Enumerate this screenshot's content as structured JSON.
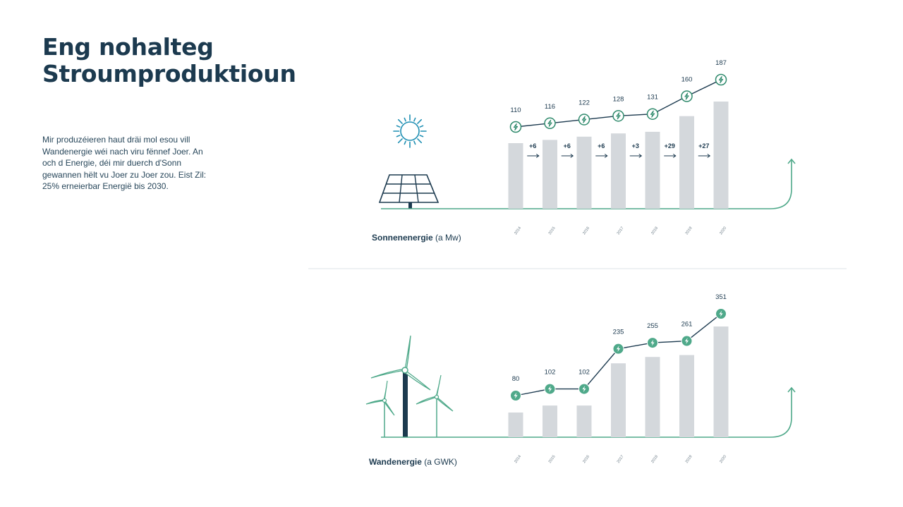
{
  "page": {
    "title_line1": "Eng nohalteg",
    "title_line2": "Stroumproduktioun",
    "intro": "Mir produzéieren haut dräi mol esou vill Wandenergie wéi nach viru fënnef Joer. An och d Energie, déi mir duerch d'Sonn gewannen hëlt vu Joer zu Joer zou. Eist Zil: 25% erneierbar Energië bis 2030."
  },
  "colors": {
    "bar": "#d4d8dc",
    "line": "#1c3a4f",
    "accent": "#4fa98a",
    "accent_dark": "#2f8a6c",
    "text": "#1c3a4f"
  },
  "chart_data": [
    {
      "type": "bar",
      "title": "Sonnenenergie",
      "unit": "(a Mw)",
      "categories": [
        "2014",
        "2015",
        "2016",
        "2017",
        "2018",
        "2019",
        "2020"
      ],
      "values": [
        110,
        116,
        122,
        128,
        131,
        160,
        187
      ],
      "differences": [
        "+6",
        "+6",
        "+6",
        "+3",
        "+29",
        "+27"
      ],
      "line_overlay": true,
      "icon": "lightning-icon",
      "illustration": "solar-panel-and-sun"
    },
    {
      "type": "bar",
      "title": "Wandenergie",
      "unit": "(a GWK)",
      "categories": [
        "2014",
        "2015",
        "2016",
        "2017",
        "2018",
        "2019",
        "2020"
      ],
      "values": [
        80,
        102,
        102,
        235,
        255,
        261,
        351
      ],
      "line_overlay": true,
      "icon": "lightning-icon",
      "illustration": "wind-turbines"
    }
  ]
}
